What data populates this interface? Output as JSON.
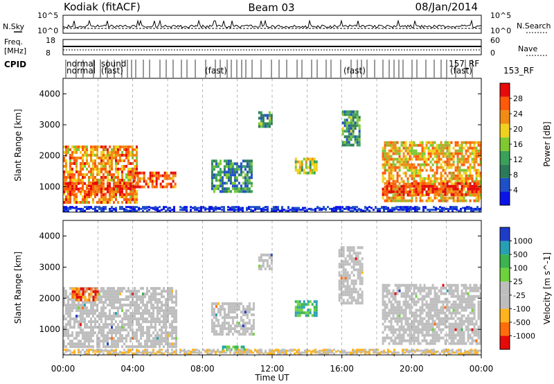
{
  "header": {
    "station": "Kodiak (fitACF)",
    "beam": "Beam 03",
    "date": "08/Jan/2014"
  },
  "strip_labels": {
    "nsky": "N.Sky",
    "nsearch": "N.Search",
    "freq_line1": "Freq.",
    "freq_line2": "[MHz]",
    "nave": "Nave",
    "cpid": "CPID"
  },
  "strip_ticks": {
    "nsky_top": "10^5",
    "nsky_bottom": "10^0",
    "freq_top": "18",
    "freq_bottom": "8",
    "nave_top": "60",
    "nave_bottom": "0"
  },
  "cpid_labels": [
    "normal",
    "normal",
    "sound",
    "(fast)",
    "(fast)",
    "(fast)",
    "157_RF",
    "(fast)",
    "153_RF"
  ],
  "colors": {
    "power_scale": [
      "#0a14e6",
      "#1e50c8",
      "#2d7a5a",
      "#3aa05a",
      "#7fc832",
      "#f0d21e",
      "#f08c14",
      "#ff5a0a",
      "#e60a0a"
    ],
    "velocity_scale": [
      "#e60a0a",
      "#ff6e0a",
      "#ffb41e",
      "#bebebe",
      "#bebebe",
      "#6ed23c",
      "#3cb450",
      "#28a0b4",
      "#1e3cc8"
    ],
    "ground_scatter": "#bebebe"
  },
  "chart_data": [
    {
      "type": "heatmap",
      "title": "",
      "xlabel": "",
      "ylabel": "Slant Range [km]",
      "xlim": [
        "00:00",
        "24:00"
      ],
      "ylim": [
        180,
        4500
      ],
      "x_ticks": [
        "00:00",
        "04:00",
        "08:00",
        "12:00",
        "16:00",
        "20:00",
        "00:00"
      ],
      "y_ticks": [
        1000,
        2000,
        3000,
        4000
      ],
      "colorbar": {
        "label": "Power [dB]",
        "range": [
          0,
          30
        ],
        "ticks": [
          4,
          8,
          12,
          16,
          20,
          24,
          28
        ]
      },
      "regions": [
        {
          "t0": 0.0,
          "t1": 4.2,
          "r0": 450,
          "r1": 2300,
          "level": 0.75
        },
        {
          "t0": 0.0,
          "t1": 4.0,
          "r0": 700,
          "r1": 1100,
          "level": 0.95
        },
        {
          "t0": 4.0,
          "t1": 6.5,
          "r0": 950,
          "r1": 1400,
          "level": 0.85
        },
        {
          "t0": 8.5,
          "t1": 10.8,
          "r0": 800,
          "r1": 1800,
          "level": 0.3
        },
        {
          "t0": 11.2,
          "t1": 12.0,
          "r0": 2900,
          "r1": 3350,
          "level": 0.35
        },
        {
          "t0": 13.3,
          "t1": 14.5,
          "r0": 1400,
          "r1": 1900,
          "level": 0.5
        },
        {
          "t0": 16.0,
          "t1": 17.0,
          "r0": 2300,
          "r1": 3400,
          "level": 0.35
        },
        {
          "t0": 18.3,
          "t1": 24.0,
          "r0": 500,
          "r1": 2400,
          "level": 0.7
        },
        {
          "t0": 18.3,
          "t1": 24.0,
          "r0": 700,
          "r1": 1100,
          "level": 0.95
        }
      ]
    },
    {
      "type": "heatmap",
      "title": "",
      "xlabel": "Time UT",
      "ylabel": "Slant Range [km]",
      "xlim": [
        "00:00",
        "24:00"
      ],
      "ylim": [
        180,
        4500
      ],
      "x_ticks": [
        "00:00",
        "04:00",
        "08:00",
        "12:00",
        "16:00",
        "20:00",
        "00:00"
      ],
      "y_ticks": [
        1000,
        2000,
        3000,
        4000
      ],
      "colorbar": {
        "label": "Velocity [m s^-1]",
        "ticks": [
          -1000,
          -500,
          -100,
          -25,
          25,
          100,
          500,
          1000
        ]
      },
      "regions": [
        {
          "t0": 0.0,
          "t1": 6.5,
          "r0": 400,
          "r1": 2300,
          "class": "ground"
        },
        {
          "t0": 8.5,
          "t1": 11.0,
          "r0": 800,
          "r1": 1800,
          "class": "ground"
        },
        {
          "t0": 11.2,
          "t1": 12.0,
          "r0": 2900,
          "r1": 3400,
          "class": "ground"
        },
        {
          "t0": 13.3,
          "t1": 14.5,
          "r0": 1400,
          "r1": 1900,
          "class": "positive"
        },
        {
          "t0": 15.8,
          "t1": 17.2,
          "r0": 1800,
          "r1": 3600,
          "class": "ground"
        },
        {
          "t0": 18.3,
          "t1": 24.0,
          "r0": 500,
          "r1": 2400,
          "class": "ground"
        },
        {
          "t0": 0.5,
          "t1": 2.0,
          "r0": 1900,
          "r1": 2300,
          "class": "negative"
        },
        {
          "t0": 9.0,
          "t1": 10.5,
          "r0": 300,
          "r1": 400,
          "class": "positive"
        }
      ]
    }
  ]
}
